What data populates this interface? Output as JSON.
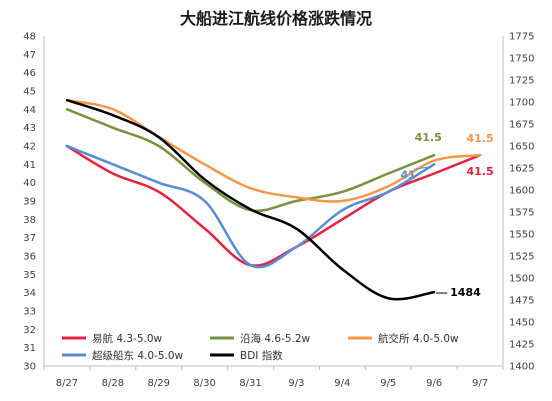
{
  "chart_data": {
    "type": "line",
    "title": "大船进江航线价格涨跌情况",
    "categories": [
      "8/27",
      "8/28",
      "8/29",
      "8/30",
      "8/31",
      "9/3",
      "9/4",
      "9/5",
      "9/6",
      "9/7"
    ],
    "y_left": {
      "min": 30,
      "max": 48,
      "step": 1
    },
    "y_right": {
      "min": 1400,
      "max": 1775,
      "step": 25
    },
    "grid": false,
    "legend_position": "bottom-inside",
    "series": [
      {
        "name": "易航 4.3-5.0w",
        "axis": "left",
        "color": "#e8213f",
        "values": [
          42.0,
          40.5,
          39.5,
          37.5,
          35.5,
          36.5,
          38.0,
          39.5,
          40.5,
          41.5
        ]
      },
      {
        "name": "沿海 4.6-5.2w",
        "axis": "left",
        "color": "#77933c",
        "values": [
          44.0,
          43.0,
          42.0,
          40.0,
          38.5,
          39.0,
          39.5,
          40.5,
          41.5,
          null
        ]
      },
      {
        "name": "航交所 4.0-5.0w",
        "axis": "left",
        "color": "#f79646",
        "values": [
          44.5,
          44.0,
          42.5,
          41.0,
          39.7,
          39.2,
          39.0,
          39.8,
          41.2,
          41.5
        ]
      },
      {
        "name": "超级船东 4.0-5.0w",
        "axis": "left",
        "color": "#558ed5",
        "values": [
          42.0,
          41.0,
          40.0,
          39.0,
          35.5,
          36.5,
          38.5,
          39.5,
          41.0,
          null
        ]
      },
      {
        "name": "BDI 指数",
        "axis": "right",
        "color": "#000000",
        "values": [
          1702,
          1685,
          1660,
          1612,
          1578,
          1556,
          1510,
          1477,
          1484,
          null
        ]
      }
    ],
    "end_labels": [
      {
        "series": "沿海 4.6-5.2w",
        "text": "41.5",
        "color": "#77933c"
      },
      {
        "series": "航交所 4.0-5.0w",
        "text": "41.5",
        "color": "#f79646"
      },
      {
        "series": "易航 4.3-5.0w",
        "text": "41.5",
        "color": "#e8213f"
      },
      {
        "series": "超级船东 4.0-5.0w",
        "text": "41",
        "color": "#558ed5"
      },
      {
        "series": "BDI 指数",
        "text": "1484",
        "color": "#000000"
      }
    ]
  }
}
